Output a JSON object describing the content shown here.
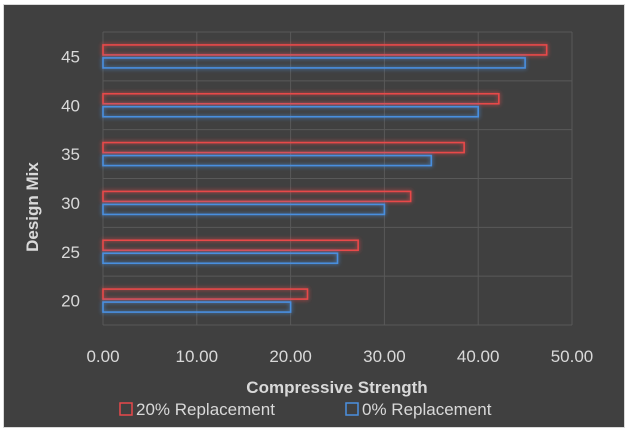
{
  "chart_data": {
    "type": "bar",
    "orientation": "horizontal",
    "categories": [
      "20",
      "25",
      "30",
      "35",
      "40",
      "45"
    ],
    "series": [
      {
        "name": "20% Replacement",
        "values": [
          21.8,
          27.2,
          32.8,
          38.5,
          42.2,
          47.3
        ],
        "color": "#e8484a"
      },
      {
        "name": "0% Replacement",
        "values": [
          20.0,
          25.0,
          30.0,
          35.0,
          40.0,
          45.0
        ],
        "color": "#4a8fdf"
      }
    ],
    "xlabel": "Compressive Strength",
    "ylabel": "Design Mix",
    "xlim": [
      0,
      50
    ],
    "xticks": [
      "0.00",
      "10.00",
      "20.00",
      "30.00",
      "40.00",
      "50.00"
    ],
    "grid": true,
    "legend_position": "bottom",
    "background": "#404040",
    "gridline_color": "#595959"
  }
}
